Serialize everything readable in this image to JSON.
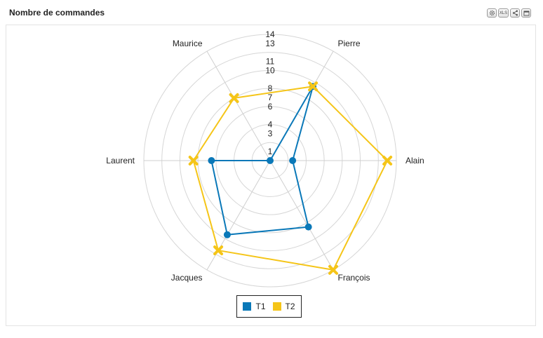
{
  "title": "Nombre de commandes",
  "toolbar": {
    "settings_icon": "gear-icon",
    "xls_label": "XLS",
    "share_icon": "share-icon",
    "fullscreen_icon": "window-icon"
  },
  "chart_data": {
    "type": "radar",
    "title": "Nombre de commandes",
    "categories": [
      "Pierre",
      "Alain",
      "François",
      "Jacques",
      "Laurent",
      "Maurice"
    ],
    "radial_ticks": [
      1,
      3,
      4,
      6,
      7,
      8,
      10,
      11,
      13,
      14
    ],
    "rmax": 14,
    "grid": true,
    "legend_position": "bottom",
    "series": [
      {
        "name": "T1",
        "color": "#0a78b8",
        "marker": "circle",
        "values": [
          9.5,
          2.5,
          8.5,
          9.5,
          6.5,
          0
        ]
      },
      {
        "name": "T2",
        "color": "#f5c518",
        "marker": "x",
        "values": [
          9.5,
          13.0,
          14.0,
          11.5,
          8.5,
          8.0
        ]
      }
    ]
  }
}
